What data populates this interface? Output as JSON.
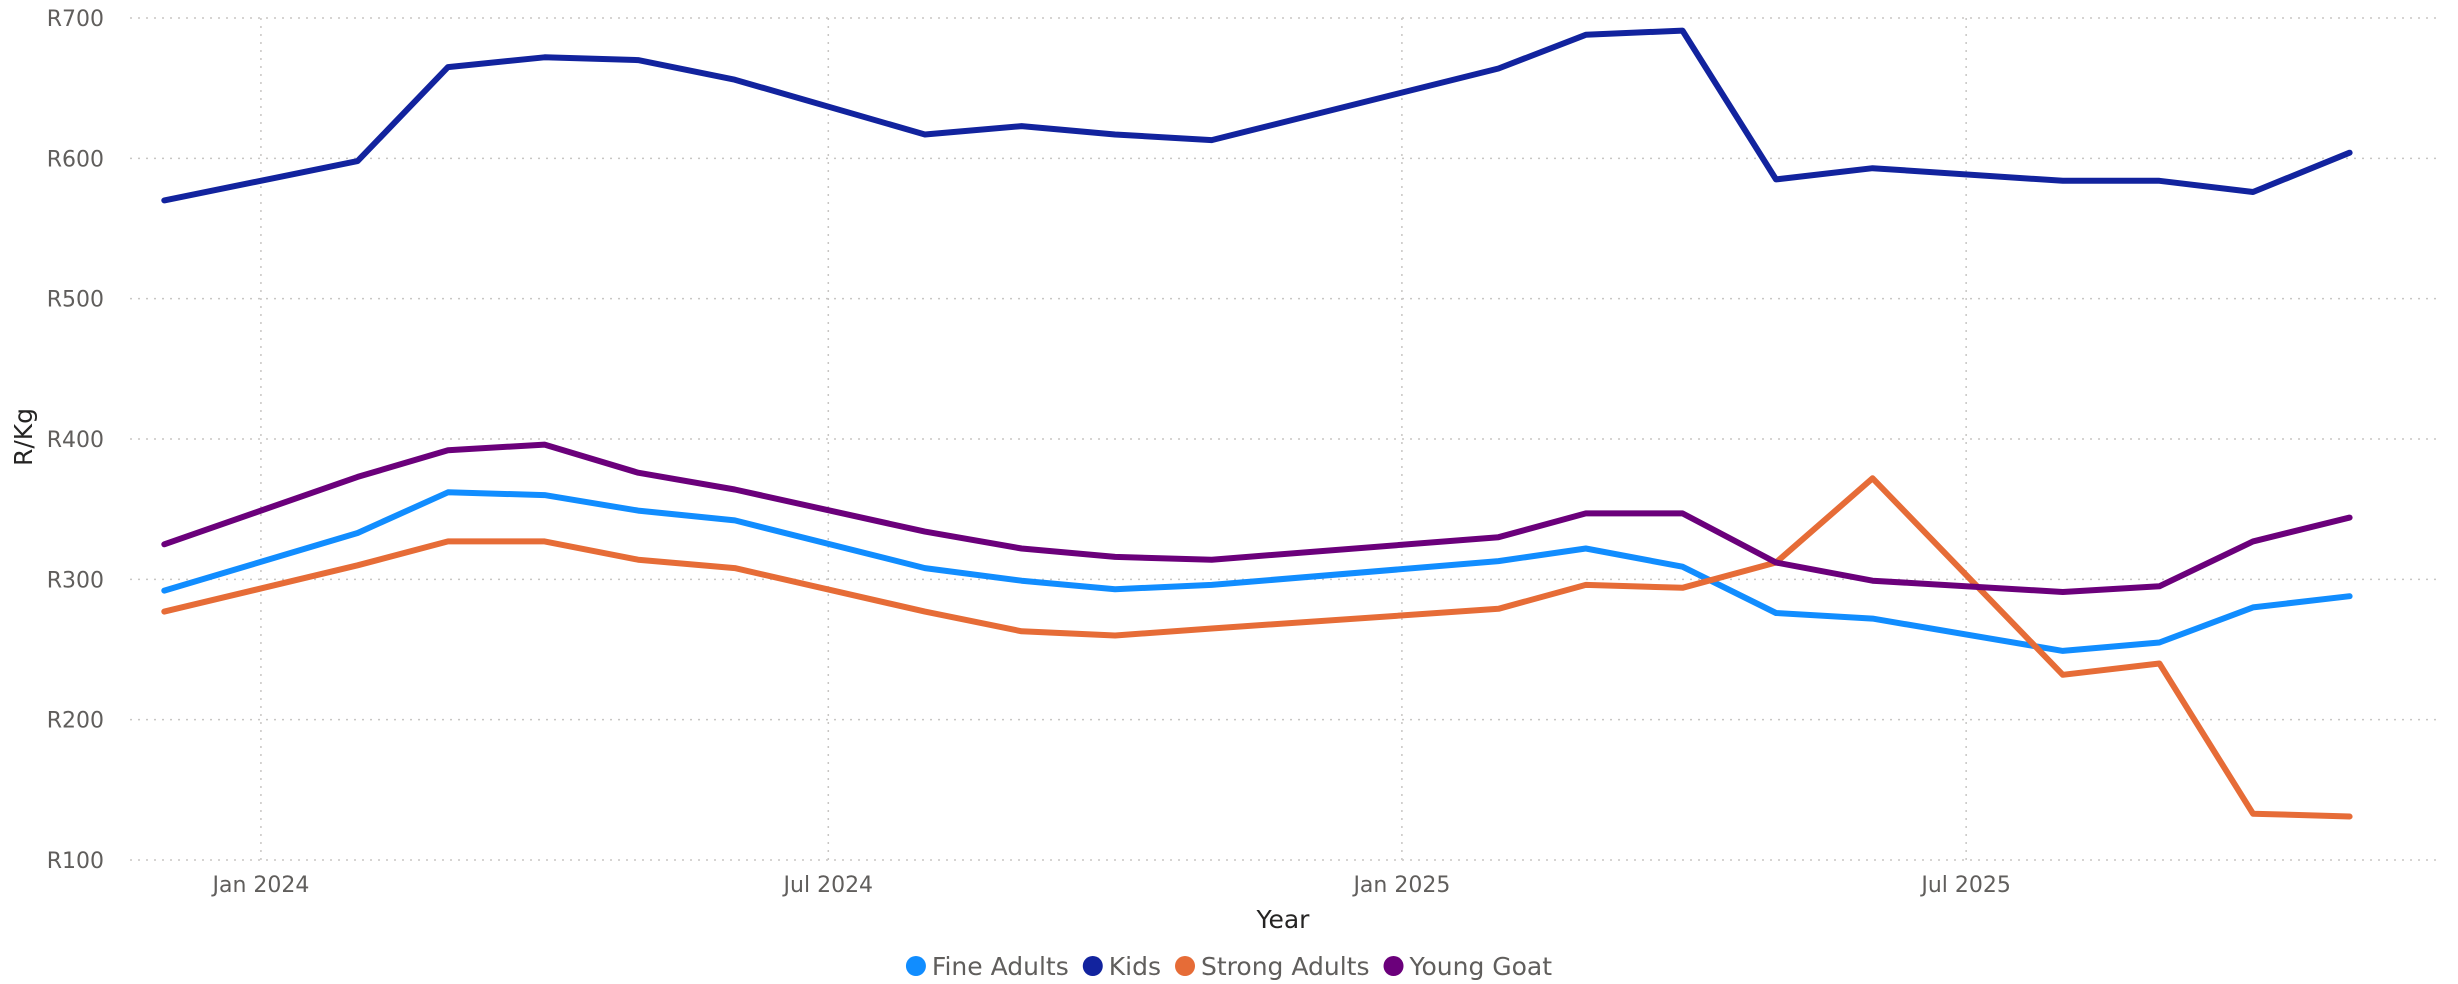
{
  "chart_data": {
    "type": "line",
    "title": "",
    "xlabel": "Year",
    "ylabel": "R/Kg",
    "ylim": [
      100,
      700
    ],
    "y_ticks": [
      {
        "value": 100,
        "label": "R100"
      },
      {
        "value": 200,
        "label": "R200"
      },
      {
        "value": 300,
        "label": "R300"
      },
      {
        "value": 400,
        "label": "R400"
      },
      {
        "value": 500,
        "label": "R500"
      },
      {
        "value": 600,
        "label": "R600"
      },
      {
        "value": 700,
        "label": "R700"
      }
    ],
    "x_ticks": [
      {
        "value": "2024-01-01",
        "label": "Jan 2024"
      },
      {
        "value": "2024-07-01",
        "label": "Jul 2024"
      },
      {
        "value": "2025-01-01",
        "label": "Jan 2025"
      },
      {
        "value": "2025-07-01",
        "label": "Jul 2025"
      }
    ],
    "xlim": [
      "2023-11-20",
      "2025-11-30"
    ],
    "grid": true,
    "legend_position": "bottom-center",
    "x": [
      "2023-12-01",
      "2024-02-01",
      "2024-03-01",
      "2024-04-01",
      "2024-05-01",
      "2024-06-01",
      "2024-08-01",
      "2024-09-01",
      "2024-10-01",
      "2024-11-01",
      "2025-02-01",
      "2025-03-01",
      "2025-04-01",
      "2025-05-01",
      "2025-06-01",
      "2025-08-01",
      "2025-09-01",
      "2025-10-01",
      "2025-11-01"
    ],
    "series": [
      {
        "name": "Fine Adults",
        "color": "#118dff",
        "values": [
          292,
          333,
          362,
          360,
          349,
          342,
          308,
          299,
          293,
          296,
          313,
          322,
          309,
          276,
          272,
          249,
          255,
          280,
          288
        ]
      },
      {
        "name": "Kids",
        "color": "#12239e",
        "values": [
          570,
          598,
          665,
          672,
          670,
          656,
          617,
          623,
          617,
          613,
          664,
          688,
          691,
          585,
          593,
          584,
          584,
          576,
          604
        ]
      },
      {
        "name": "Strong Adults",
        "color": "#e66c37",
        "values": [
          277,
          310,
          327,
          327,
          314,
          308,
          277,
          263,
          260,
          265,
          279,
          296,
          294,
          312,
          372,
          232,
          240,
          133,
          131
        ]
      },
      {
        "name": "Young Goat",
        "color": "#6b007b",
        "values": [
          325,
          373,
          392,
          396,
          376,
          364,
          334,
          322,
          316,
          314,
          330,
          347,
          347,
          312,
          299,
          291,
          295,
          327,
          344
        ]
      }
    ]
  }
}
